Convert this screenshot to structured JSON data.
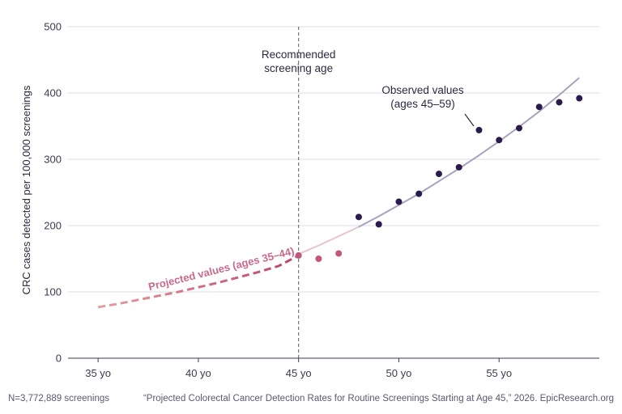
{
  "chart_data": {
    "type": "scatter",
    "ylabel": "CRC cases detected per 100,000 screenings",
    "xlabel": "",
    "xlim": [
      33.5,
      60
    ],
    "ylim": [
      0,
      500
    ],
    "x_ticks": [
      35,
      40,
      45,
      50,
      55
    ],
    "x_tick_labels": [
      "35 yo",
      "40 yo",
      "45 yo",
      "50 yo",
      "55 yo"
    ],
    "y_ticks": [
      0,
      100,
      200,
      300,
      400,
      500
    ],
    "y_tick_labels": [
      "0",
      "100",
      "200",
      "300",
      "400",
      "500"
    ],
    "grid": "horizontal",
    "reference_line": {
      "x": 45,
      "label_lines": [
        "Recommended",
        "screening age"
      ]
    },
    "projected_label": "Projected values (ages 35–44)",
    "observed_label_lines": [
      "Observed values",
      "(ages 45–59)"
    ],
    "colors": {
      "observed_points": "#2a1a4e",
      "early_points": "#c2577a",
      "projected_line_start": "#e3a0a0",
      "projected_line_end": "#b8456c",
      "fit_line": "#a6a3bf",
      "fit_line_light": "#e8c4cf",
      "grid": "#dcdce6",
      "axis": "#3d3a52"
    },
    "series": [
      {
        "kind": "projected",
        "x": [
          35,
          36,
          37,
          38,
          39,
          40,
          41,
          42,
          43,
          44,
          45
        ],
        "y": [
          77,
          82,
          88,
          94,
          100,
          107,
          114,
          122,
          130,
          139,
          155
        ]
      },
      {
        "kind": "early_observed",
        "x": [
          45,
          46,
          47
        ],
        "y": [
          155,
          150,
          158
        ]
      },
      {
        "kind": "observed",
        "x": [
          48,
          49,
          50,
          51,
          52,
          53,
          54,
          55,
          56,
          57,
          58,
          59
        ],
        "y": [
          213,
          202,
          236,
          248,
          278,
          288,
          344,
          329,
          347,
          379,
          386,
          392
        ]
      },
      {
        "kind": "fit",
        "x": [
          45,
          46,
          47,
          48,
          49,
          50,
          51,
          52,
          53,
          54,
          55,
          56,
          57,
          58,
          59
        ],
        "y": [
          157,
          170,
          184,
          198,
          214,
          231,
          248,
          267,
          286,
          306,
          327,
          349,
          372,
          397,
          423
        ]
      }
    ]
  },
  "footer": {
    "left": "N=3,772,889 screenings",
    "right": "“Projected Colorectal Cancer Detection Rates for Routine Screenings Starting at Age 45,” 2026. EpicResearch.org"
  }
}
